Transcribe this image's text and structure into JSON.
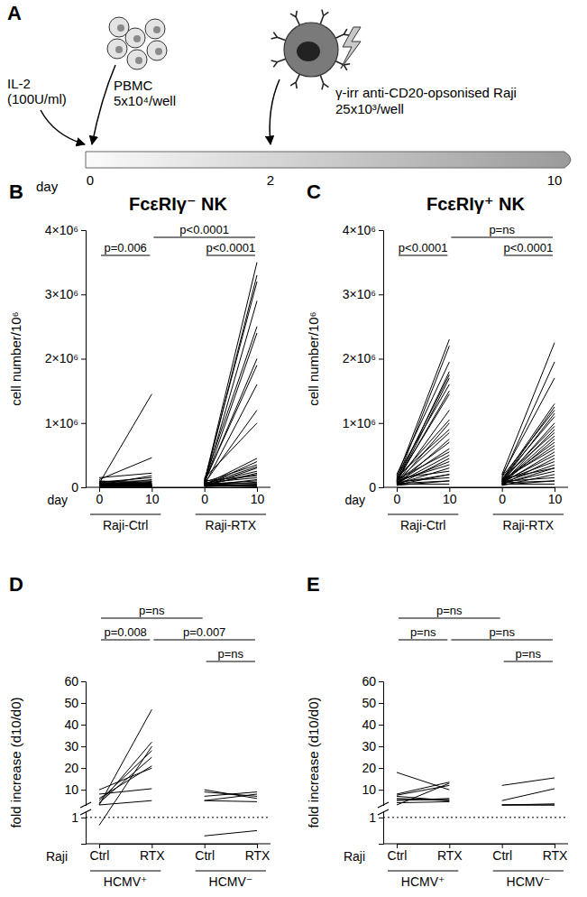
{
  "panel_a": {
    "label": "A",
    "il2": [
      "IL-2",
      "(100U/ml)"
    ],
    "pbmc": [
      "PBMC",
      "5x10⁴/well"
    ],
    "raji": [
      "γ-irr anti-CD20-opsonised Raji",
      "25x10³/well"
    ],
    "axis_label": "day",
    "days": [
      "0",
      "2",
      "10"
    ]
  },
  "chart_data": [
    {
      "type": "line",
      "panel": "B",
      "title": "FcεRIγ⁻ NK",
      "y_label": "cell number/10⁶",
      "x_label": "day",
      "categories": [
        "0",
        "10",
        "0",
        "10"
      ],
      "ylim": [
        0,
        4000000
      ],
      "yticks": [
        0,
        {
          "value": 1000000,
          "label": "1×10⁶"
        },
        {
          "value": 2000000,
          "label": "2×10⁶"
        },
        {
          "value": 3000000,
          "label": "3×10⁶"
        },
        {
          "value": 4000000,
          "label": "4×10⁶"
        }
      ],
      "color": "#000000",
      "series": [
        {
          "name": "Raji-Ctrl",
          "start": [
            60000,
            120000,
            150000,
            40000,
            80000,
            30000,
            90000,
            50000,
            20000,
            70000,
            100000,
            40000,
            30000,
            60000,
            50000,
            20000,
            80000,
            10000,
            40000,
            30000,
            70000,
            20000,
            50000,
            60000,
            30000,
            10000,
            40000,
            20000,
            50000,
            30000
          ],
          "end": [
            1450000,
            460000,
            220000,
            180000,
            150000,
            120000,
            100000,
            90000,
            80000,
            70000,
            60000,
            50000,
            50000,
            40000,
            40000,
            30000,
            30000,
            20000,
            20000,
            10000,
            60000,
            30000,
            20000,
            10000,
            40000,
            10000,
            20000,
            30000,
            10000,
            20000
          ]
        },
        {
          "name": "Raji-RTX",
          "start": [
            80000,
            60000,
            100000,
            40000,
            120000,
            50000,
            70000,
            90000,
            30000,
            60000,
            140000,
            40000,
            30000,
            80000,
            50000,
            20000,
            60000,
            30000,
            40000,
            100000,
            70000,
            20000,
            50000,
            30000,
            60000,
            10000,
            40000,
            20000,
            50000,
            30000
          ],
          "end": [
            3500000,
            3300000,
            3200000,
            2900000,
            2500000,
            2400000,
            2000000,
            1900000,
            1600000,
            1200000,
            1000000,
            450000,
            400000,
            350000,
            320000,
            300000,
            250000,
            220000,
            200000,
            180000,
            150000,
            120000,
            100000,
            80000,
            60000,
            50000,
            40000,
            30000,
            20000,
            10000
          ]
        }
      ],
      "annotations": [
        "p=0.006",
        "p<0.0001",
        "p<0.0001"
      ]
    },
    {
      "type": "line",
      "panel": "C",
      "title": "FcεRIγ⁺ NK",
      "y_label": "cell number/10⁶",
      "x_label": "day",
      "categories": [
        "0",
        "10",
        "0",
        "10"
      ],
      "ylim": [
        0,
        4000000
      ],
      "yticks": [
        0,
        {
          "value": 1000000,
          "label": "1×10⁶"
        },
        {
          "value": 2000000,
          "label": "2×10⁶"
        },
        {
          "value": 3000000,
          "label": "3×10⁶"
        },
        {
          "value": 4000000,
          "label": "4×10⁶"
        }
      ],
      "color": "#000000",
      "series": [
        {
          "name": "Raji-Ctrl",
          "start": [
            150000,
            100000,
            200000,
            80000,
            120000,
            60000,
            180000,
            90000,
            110000,
            70000,
            130000,
            50000,
            160000,
            100000,
            40000,
            90000,
            70000,
            120000,
            60000,
            30000,
            80000,
            100000,
            50000,
            140000,
            70000,
            40000,
            90000,
            60000,
            30000,
            50000
          ],
          "end": [
            2300000,
            2200000,
            1950000,
            1800000,
            1750000,
            1700000,
            1600000,
            1500000,
            1450000,
            1200000,
            1050000,
            1000000,
            900000,
            850000,
            750000,
            700000,
            600000,
            550000,
            500000,
            450000,
            400000,
            350000,
            300000,
            250000,
            200000,
            200000,
            150000,
            100000,
            100000,
            50000
          ]
        },
        {
          "name": "Raji-RTX",
          "start": [
            200000,
            150000,
            180000,
            120000,
            100000,
            160000,
            90000,
            130000,
            80000,
            110000,
            60000,
            140000,
            70000,
            50000,
            100000,
            90000,
            120000,
            60000,
            80000,
            40000,
            100000,
            70000,
            50000,
            130000,
            60000,
            30000,
            90000,
            40000,
            70000,
            50000
          ],
          "end": [
            2250000,
            1950000,
            1700000,
            1300000,
            1250000,
            1200000,
            1150000,
            1100000,
            1000000,
            950000,
            900000,
            850000,
            800000,
            750000,
            700000,
            650000,
            600000,
            550000,
            500000,
            450000,
            400000,
            350000,
            300000,
            300000,
            250000,
            200000,
            150000,
            100000,
            100000,
            50000
          ]
        }
      ],
      "annotations": [
        "p<0.0001",
        "p=ns",
        "p<0.0001"
      ]
    },
    {
      "type": "line",
      "panel": "D",
      "y_label": "fold increase (d10/d0)",
      "x_label": "Raji",
      "categories": [
        "Ctrl",
        "RTX",
        "Ctrl",
        "RTX"
      ],
      "ylim": [
        0,
        60
      ],
      "ybreak": [
        1.2,
        3
      ],
      "yticks": [
        1,
        10,
        20,
        30,
        40,
        50,
        60
      ],
      "hline": 1,
      "color": "#000000",
      "series": [
        {
          "name": "HCMV⁺",
          "start": [
            3,
            3.5,
            0.7,
            5,
            4,
            6,
            10,
            8,
            3
          ],
          "end": [
            47,
            32,
            30,
            28,
            25,
            21,
            20,
            10.5,
            5
          ]
        },
        {
          "name": "HCMV⁻",
          "start": [
            10,
            9,
            7,
            5,
            5,
            0.3
          ],
          "end": [
            6,
            7,
            9,
            8,
            4.5,
            0.5
          ]
        }
      ],
      "annotations": [
        "p=ns",
        "p=0.008",
        "p=0.007",
        "p=ns"
      ]
    },
    {
      "type": "line",
      "panel": "E",
      "y_label": "fold increase (d10/d0)",
      "x_label": "Raji",
      "categories": [
        "Ctrl",
        "RTX",
        "Ctrl",
        "RTX"
      ],
      "ylim": [
        0,
        60
      ],
      "ybreak": [
        1.2,
        3
      ],
      "yticks": [
        1,
        10,
        20,
        30,
        40,
        50,
        60
      ],
      "hline": 1,
      "color": "#000000",
      "series": [
        {
          "name": "HCMV⁺",
          "start": [
            18,
            8,
            7.5,
            7,
            6,
            5.5,
            5,
            3,
            4
          ],
          "end": [
            10,
            13.5,
            12,
            5,
            5,
            5.5,
            6,
            13,
            4.5
          ]
        },
        {
          "name": "HCMV⁻",
          "start": [
            12,
            5,
            3,
            3,
            3
          ],
          "end": [
            15.5,
            10.5,
            3.5,
            3,
            3
          ]
        }
      ],
      "annotations": [
        "p=ns",
        "p=ns",
        "p=ns",
        "p=ns"
      ]
    }
  ]
}
